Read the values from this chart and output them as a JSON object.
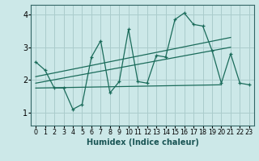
{
  "xlabel": "Humidex (Indice chaleur)",
  "ylabel": "",
  "bg_color": "#cce8e8",
  "line_color": "#1a6b5a",
  "grid_color": "#aacccc",
  "xlim": [
    -0.5,
    23.5
  ],
  "ylim": [
    0.6,
    4.3
  ],
  "yticks": [
    1,
    2,
    3,
    4
  ],
  "xticks": [
    0,
    1,
    2,
    3,
    4,
    5,
    6,
    7,
    8,
    9,
    10,
    11,
    12,
    13,
    14,
    15,
    16,
    17,
    18,
    19,
    20,
    21,
    22,
    23
  ],
  "series1_x": [
    0,
    1,
    2,
    3,
    4,
    5,
    6,
    7,
    8,
    9,
    10,
    11,
    12,
    13,
    14,
    15,
    16,
    17,
    18,
    19,
    20,
    21,
    22,
    23
  ],
  "series1_y": [
    2.55,
    2.3,
    1.75,
    1.75,
    1.1,
    1.25,
    2.7,
    3.2,
    1.6,
    1.95,
    3.55,
    1.95,
    1.9,
    2.75,
    2.7,
    3.85,
    4.05,
    3.7,
    3.65,
    2.9,
    1.9,
    2.8,
    1.9,
    1.85
  ],
  "series2_x": [
    0,
    20
  ],
  "series2_y": [
    1.75,
    1.85
  ],
  "series3_x": [
    0,
    21
  ],
  "series3_y": [
    2.1,
    3.3
  ],
  "series4_x": [
    0,
    21
  ],
  "series4_y": [
    1.9,
    3.0
  ],
  "xlabel_fontsize": 7,
  "tick_fontsize": 6.5
}
